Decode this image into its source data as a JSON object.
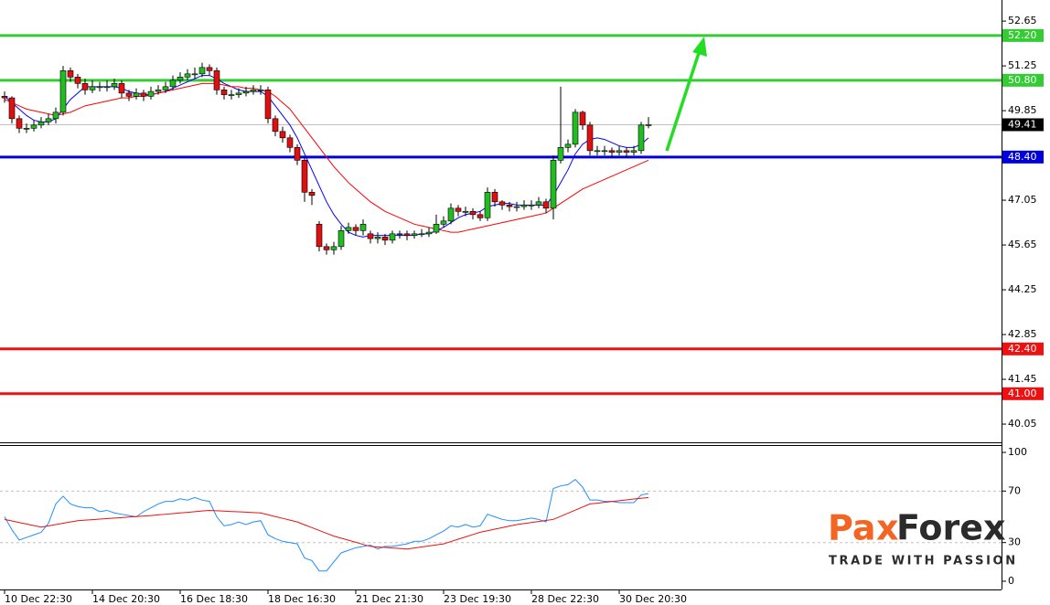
{
  "chart_data": {
    "type": "candlestick",
    "categories": [
      "10 Dec 22:30",
      null,
      null,
      null,
      null,
      null,
      null,
      null,
      null,
      null,
      null,
      null,
      "14 Dec 20:30",
      null,
      null,
      null,
      null,
      null,
      null,
      null,
      null,
      null,
      null,
      null,
      "16 Dec 18:30",
      null,
      null,
      null,
      null,
      null,
      null,
      null,
      null,
      null,
      null,
      null,
      "18 Dec 16:30",
      null,
      null,
      null,
      null,
      null,
      null,
      null,
      null,
      null,
      null,
      null,
      "21 Dec 21:30",
      null,
      null,
      null,
      null,
      null,
      null,
      null,
      null,
      null,
      null,
      null,
      "23 Dec 19:30",
      null,
      null,
      null,
      null,
      null,
      null,
      null,
      null,
      null,
      null,
      null,
      "28 Dec 22:30",
      null,
      null,
      null,
      null,
      null,
      null,
      null,
      null,
      null,
      null,
      null,
      "30 Dec 20:30",
      null,
      null,
      null,
      null
    ],
    "open": [
      50.3,
      50.25,
      49.6,
      49.3,
      49.3,
      49.4,
      49.5,
      49.6,
      49.8,
      51.1,
      50.9,
      50.7,
      50.5,
      50.6,
      50.6,
      50.6,
      50.7,
      50.4,
      50.3,
      50.4,
      50.3,
      50.45,
      50.5,
      50.6,
      50.8,
      50.9,
      51.0,
      51.0,
      51.2,
      51.1,
      50.5,
      50.35,
      50.35,
      50.4,
      50.45,
      50.5,
      50.5,
      49.6,
      49.2,
      49.0,
      48.7,
      48.3,
      47.3,
      46.3,
      45.6,
      45.5,
      45.6,
      46.1,
      46.2,
      46.1,
      46.0,
      45.85,
      45.9,
      45.8,
      46.0,
      46.0,
      45.95,
      46.0,
      46.0,
      46.05,
      46.3,
      46.4,
      46.8,
      46.7,
      46.7,
      46.6,
      46.5,
      47.3,
      47.0,
      46.9,
      46.85,
      46.85,
      46.9,
      46.9,
      47.0,
      46.8,
      48.3,
      48.7,
      48.8,
      49.8,
      49.4,
      48.6,
      48.6,
      48.6,
      48.55,
      48.6,
      48.55,
      48.6,
      49.4
    ],
    "high": [
      50.45,
      50.3,
      49.7,
      49.45,
      49.55,
      49.65,
      49.75,
      49.95,
      51.25,
      51.2,
      51.0,
      50.85,
      50.8,
      50.75,
      50.8,
      50.85,
      50.8,
      50.5,
      50.55,
      50.5,
      50.6,
      50.65,
      50.75,
      50.95,
      51.05,
      51.15,
      51.2,
      51.35,
      51.3,
      51.2,
      50.6,
      50.5,
      50.55,
      50.6,
      50.65,
      50.65,
      50.6,
      49.7,
      49.35,
      49.1,
      48.8,
      48.4,
      47.4,
      46.4,
      45.7,
      45.75,
      46.25,
      46.35,
      46.3,
      46.45,
      46.1,
      46.05,
      46.0,
      46.1,
      46.1,
      46.1,
      46.1,
      46.15,
      46.2,
      46.6,
      46.55,
      46.95,
      46.9,
      46.85,
      46.8,
      46.7,
      47.45,
      47.4,
      47.05,
      47.0,
      47.0,
      47.05,
      47.05,
      47.15,
      47.1,
      48.45,
      50.6,
      48.95,
      49.9,
      49.85,
      49.5,
      48.75,
      48.75,
      48.7,
      48.75,
      48.7,
      48.75,
      49.5,
      49.65
    ],
    "low": [
      50.1,
      49.45,
      49.15,
      49.15,
      49.2,
      49.3,
      49.4,
      49.45,
      49.7,
      50.75,
      50.55,
      50.35,
      50.4,
      50.45,
      50.45,
      50.5,
      50.25,
      50.15,
      50.2,
      50.15,
      50.2,
      50.35,
      50.4,
      50.5,
      50.7,
      50.8,
      50.85,
      50.9,
      50.95,
      50.35,
      50.2,
      50.2,
      50.25,
      50.3,
      50.35,
      50.35,
      49.45,
      49.05,
      48.85,
      48.55,
      48.15,
      47.0,
      46.9,
      45.45,
      45.35,
      45.35,
      45.5,
      46.0,
      45.95,
      45.95,
      45.7,
      45.7,
      45.65,
      45.7,
      45.85,
      45.8,
      45.85,
      45.9,
      45.9,
      46.0,
      46.2,
      46.3,
      46.55,
      46.55,
      46.45,
      46.4,
      46.4,
      46.85,
      46.75,
      46.7,
      46.7,
      46.75,
      46.75,
      46.8,
      46.65,
      46.45,
      48.2,
      48.55,
      48.7,
      49.25,
      48.45,
      48.45,
      48.45,
      48.4,
      48.45,
      48.4,
      48.45,
      48.5,
      49.3
    ],
    "close": [
      50.25,
      49.6,
      49.3,
      49.3,
      49.4,
      49.5,
      49.6,
      49.8,
      51.1,
      50.9,
      50.7,
      50.5,
      50.6,
      50.6,
      50.6,
      50.7,
      50.4,
      50.3,
      50.4,
      50.3,
      50.45,
      50.5,
      50.6,
      50.8,
      50.9,
      51.0,
      51.0,
      51.2,
      51.1,
      50.5,
      50.35,
      50.35,
      50.4,
      50.45,
      50.5,
      50.5,
      49.6,
      49.2,
      49.0,
      48.7,
      48.3,
      47.3,
      47.2,
      45.6,
      45.5,
      45.6,
      46.1,
      46.2,
      46.1,
      46.3,
      45.85,
      45.9,
      45.8,
      46.0,
      46.0,
      45.95,
      46.0,
      46.0,
      46.05,
      46.3,
      46.4,
      46.8,
      46.7,
      46.7,
      46.6,
      46.5,
      47.3,
      47.0,
      46.9,
      46.85,
      46.85,
      46.9,
      46.9,
      47.0,
      46.8,
      48.3,
      48.7,
      48.8,
      49.8,
      49.4,
      48.6,
      48.6,
      48.6,
      48.55,
      48.6,
      48.55,
      48.6,
      49.4,
      49.41
    ],
    "up_color": "#22bb22",
    "down_color": "#dd1111",
    "series": [
      {
        "color": "#0000ff",
        "values": [
          50.3,
          50.1,
          49.9,
          49.7,
          49.55,
          49.5,
          49.5,
          49.6,
          49.9,
          50.2,
          50.4,
          50.6,
          50.6,
          50.6,
          50.6,
          50.6,
          50.55,
          50.45,
          50.4,
          50.35,
          50.35,
          50.4,
          50.45,
          50.55,
          50.65,
          50.75,
          50.85,
          50.95,
          50.95,
          50.85,
          50.7,
          50.6,
          50.5,
          50.45,
          50.45,
          50.45,
          50.3,
          50.0,
          49.7,
          49.4,
          49.0,
          48.5,
          48.0,
          47.5,
          47.0,
          46.6,
          46.3,
          46.05,
          45.95,
          45.9,
          45.95,
          45.95,
          45.95,
          45.95,
          45.95,
          45.95,
          45.95,
          46.0,
          46.0,
          46.1,
          46.2,
          46.35,
          46.5,
          46.6,
          46.65,
          46.7,
          46.85,
          46.9,
          46.95,
          46.95,
          46.9,
          46.9,
          46.9,
          46.9,
          46.9,
          47.2,
          47.6,
          48.0,
          48.5,
          48.8,
          48.95,
          49.0,
          48.95,
          48.85,
          48.75,
          48.7,
          48.7,
          48.8,
          49.0
        ]
      },
      {
        "color": "#ff0000",
        "values": [
          50.2,
          50.1,
          50.0,
          49.9,
          49.85,
          49.8,
          49.75,
          49.7,
          49.75,
          49.8,
          49.9,
          50.0,
          50.05,
          50.1,
          50.15,
          50.2,
          50.25,
          50.25,
          50.3,
          50.3,
          50.35,
          50.4,
          50.45,
          50.5,
          50.55,
          50.6,
          50.65,
          50.7,
          50.7,
          50.7,
          50.65,
          50.6,
          50.6,
          50.55,
          50.55,
          50.5,
          50.45,
          50.3,
          50.1,
          49.9,
          49.6,
          49.3,
          49.0,
          48.7,
          48.4,
          48.1,
          47.85,
          47.6,
          47.4,
          47.2,
          47.0,
          46.85,
          46.7,
          46.6,
          46.5,
          46.4,
          46.3,
          46.25,
          46.2,
          46.15,
          46.1,
          46.05,
          46.05,
          46.1,
          46.15,
          46.2,
          46.25,
          46.3,
          46.35,
          46.4,
          46.45,
          46.5,
          46.55,
          46.6,
          46.65,
          46.8,
          46.95,
          47.1,
          47.25,
          47.4,
          47.5,
          47.6,
          47.7,
          47.8,
          47.9,
          48.0,
          48.1,
          48.2,
          48.3
        ]
      }
    ],
    "ylim": [
      39.48,
      53.31
    ],
    "yticks": [
      52.65,
      51.25,
      49.85,
      47.05,
      45.65,
      44.25,
      42.85,
      41.45,
      40.05
    ],
    "levels": [
      {
        "value": 52.2,
        "label": "52.20",
        "color": "#33cc33"
      },
      {
        "value": 50.8,
        "label": "50.80",
        "color": "#33cc33"
      },
      {
        "value": 48.4,
        "label": "48.40",
        "color": "#0000dd"
      },
      {
        "value": 42.4,
        "label": "42.40",
        "color": "#ee1111"
      },
      {
        "value": 41.0,
        "label": "41.00",
        "color": "#ee1111"
      }
    ],
    "current_price": 49.41,
    "rsi": {
      "ylim": [
        -6.4,
        105.7
      ],
      "yticks": [
        100,
        70,
        30,
        0
      ],
      "levels": [
        70,
        30
      ],
      "series": [
        {
          "color": "#1e90ff",
          "values": [
            50,
            40,
            32,
            34,
            36,
            38,
            45,
            60,
            66,
            60,
            58,
            57,
            57,
            54,
            55,
            53,
            52,
            51,
            50,
            54,
            57,
            60,
            62,
            62,
            64,
            63,
            65,
            63,
            62,
            50,
            43,
            44,
            46,
            44,
            46,
            47,
            36,
            33,
            31,
            30,
            29,
            18,
            16,
            8,
            8,
            15,
            22,
            24,
            26,
            27,
            28,
            25,
            27,
            27,
            28,
            29,
            31,
            31,
            33,
            36,
            39,
            43,
            42,
            44,
            42,
            43,
            52,
            50,
            48,
            47,
            47,
            48,
            49,
            48,
            46,
            72,
            74,
            75,
            79,
            73,
            63,
            63,
            62,
            62,
            61,
            61,
            61,
            67,
            68
          ]
        },
        {
          "color": "#ee1111",
          "values": [
            48,
            46.8,
            45.6,
            44.4,
            43.2,
            42,
            43,
            44,
            45,
            46,
            47,
            47.4,
            47.8,
            48.2,
            48.6,
            49,
            49.4,
            49.8,
            50.2,
            50.6,
            51,
            51.5,
            52,
            52.5,
            53,
            53.5,
            54,
            54.5,
            55,
            54.7,
            54.4,
            54.1,
            53.9,
            53.6,
            53.3,
            53,
            51.6,
            50.2,
            48.8,
            47.4,
            46,
            43.8,
            41.6,
            39.4,
            37.2,
            35,
            33.4,
            31.8,
            30.2,
            28.6,
            27,
            26.6,
            26.2,
            25.8,
            25.4,
            25,
            25.8,
            26.6,
            27.4,
            28.2,
            29,
            30.8,
            32.6,
            34.4,
            36.2,
            38,
            39.2,
            40.4,
            41.6,
            42.8,
            44,
            44.8,
            45.6,
            46.4,
            47.2,
            48,
            50.4,
            52.8,
            55.2,
            57.6,
            60,
            60.6,
            61.3,
            61.9,
            62.5,
            63.1,
            63.8,
            64.4,
            65
          ]
        }
      ]
    }
  },
  "logo": {
    "brand_start": "Pa",
    "brand_mark": "x",
    "brand_end": "Forex",
    "tagline": "TRADE WITH PASSION"
  }
}
